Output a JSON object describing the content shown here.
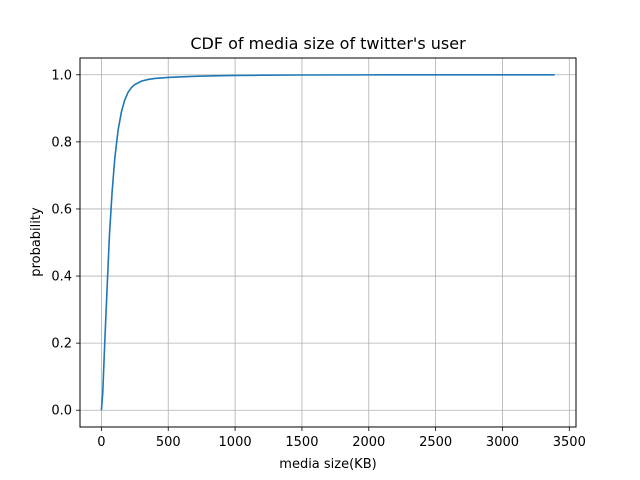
{
  "chart_data": {
    "type": "line",
    "title": "CDF of media size of twitter's user",
    "xlabel": "media size(KB)",
    "ylabel": "probability",
    "xlim": [
      -160,
      3550
    ],
    "ylim": [
      -0.05,
      1.05
    ],
    "xticks": [
      0,
      500,
      1000,
      1500,
      2000,
      2500,
      3000,
      3500
    ],
    "xtick_labels": [
      "0",
      "500",
      "1000",
      "1500",
      "2000",
      "2500",
      "3000",
      "3500"
    ],
    "yticks": [
      0.0,
      0.2,
      0.4,
      0.6,
      0.8,
      1.0
    ],
    "ytick_labels": [
      "0.0",
      "0.2",
      "0.4",
      "0.6",
      "0.8",
      "1.0"
    ],
    "grid": true,
    "line_color": "#1f77b4",
    "series": [
      {
        "x": [
          0,
          10,
          25,
          40,
          60,
          80,
          100,
          125,
          150,
          175,
          200,
          225,
          250,
          300,
          350,
          400,
          500,
          600,
          700,
          800,
          1000,
          1200,
          1500,
          2000,
          2500,
          3000,
          3390
        ],
        "y": [
          0.0,
          0.05,
          0.2,
          0.34,
          0.52,
          0.65,
          0.75,
          0.835,
          0.89,
          0.925,
          0.948,
          0.962,
          0.971,
          0.981,
          0.986,
          0.989,
          0.992,
          0.994,
          0.9955,
          0.9965,
          0.998,
          0.9987,
          0.9993,
          0.9997,
          0.9999,
          1.0,
          1.0
        ]
      }
    ]
  }
}
